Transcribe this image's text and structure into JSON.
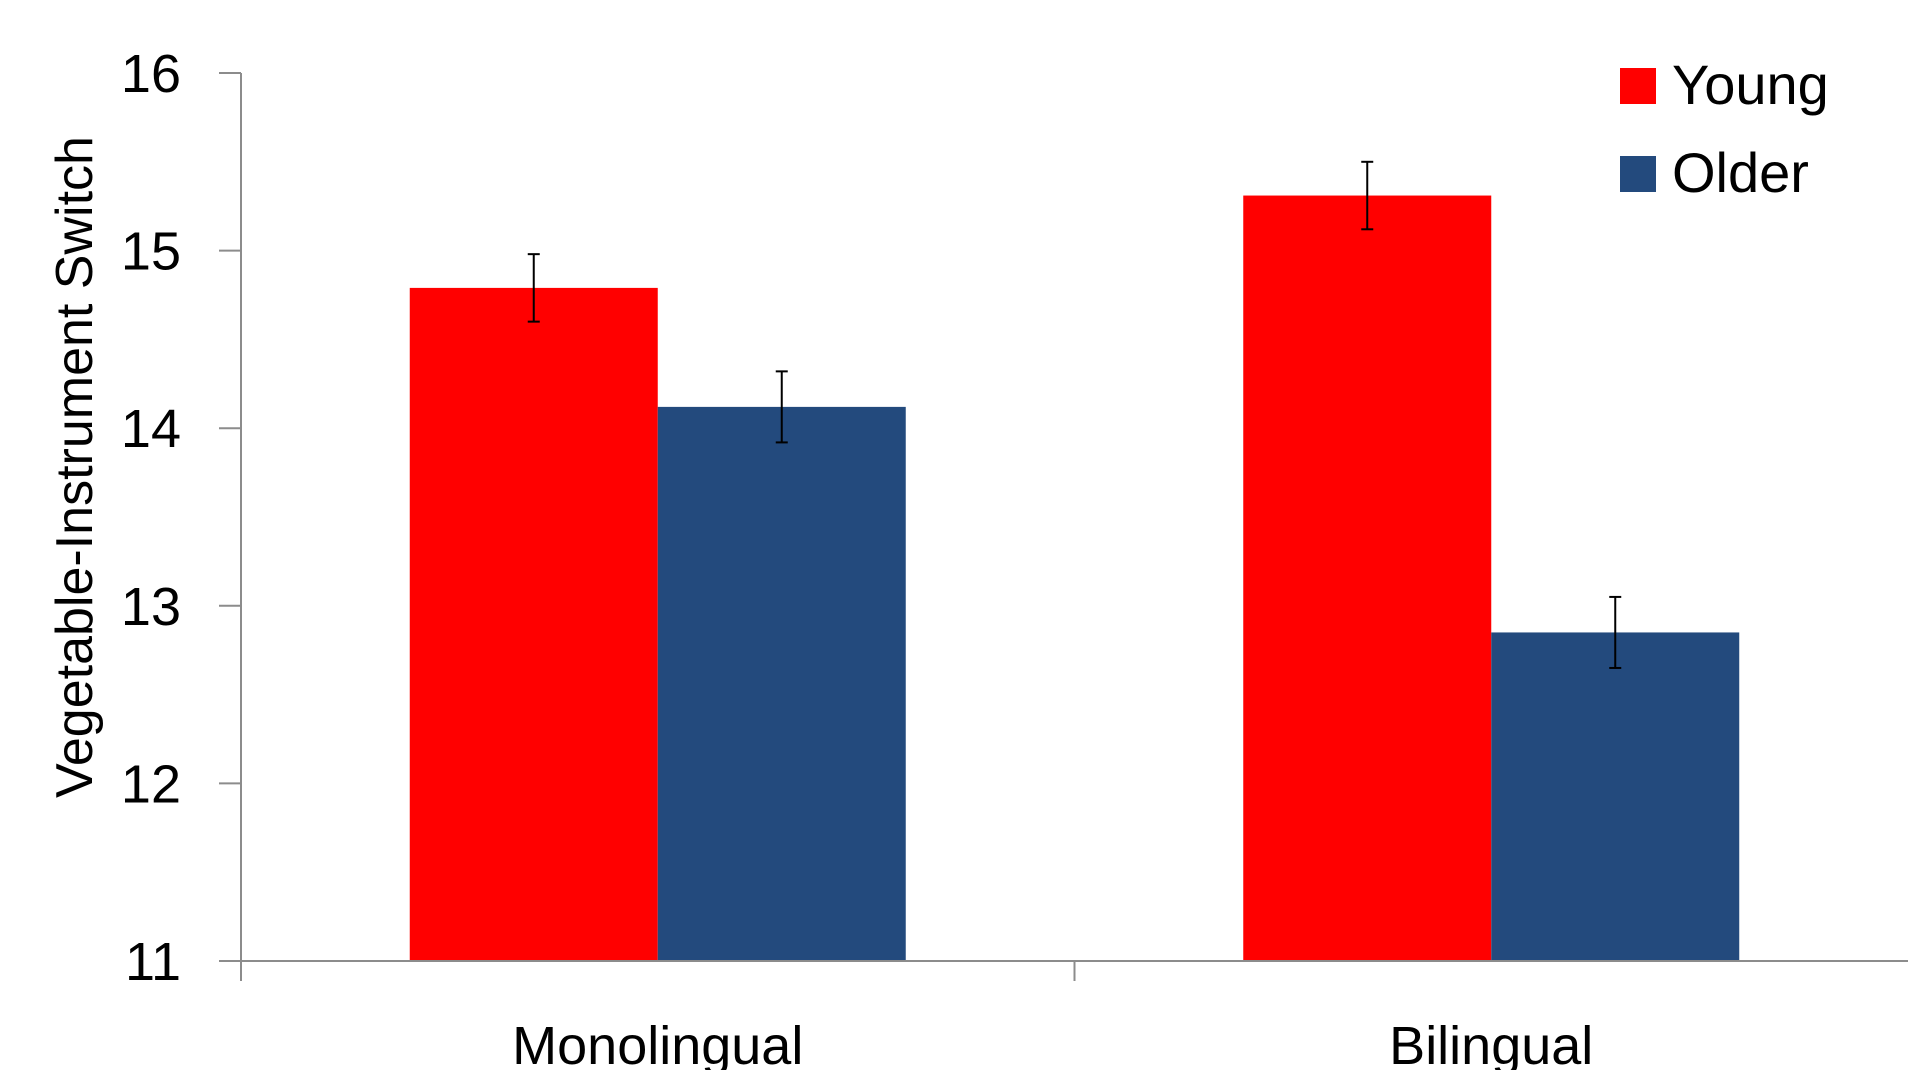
{
  "chart_data": {
    "type": "bar",
    "title": "",
    "xlabel": "",
    "ylabel": "Vegetable-Instrument Switch",
    "categories": [
      "Monolingual",
      "Bilingual"
    ],
    "ylim": [
      11,
      16
    ],
    "yticks": [
      11,
      12,
      13,
      14,
      15,
      16
    ],
    "grid": false,
    "legend_position": "top-right",
    "series": [
      {
        "name": "Young",
        "color": "#ff0000",
        "values": [
          14.79,
          15.31
        ],
        "error": [
          0.19,
          0.19
        ]
      },
      {
        "name": "Older",
        "color": "#234a7d",
        "values": [
          14.12,
          12.85
        ],
        "error": [
          0.2,
          0.2
        ]
      }
    ]
  }
}
